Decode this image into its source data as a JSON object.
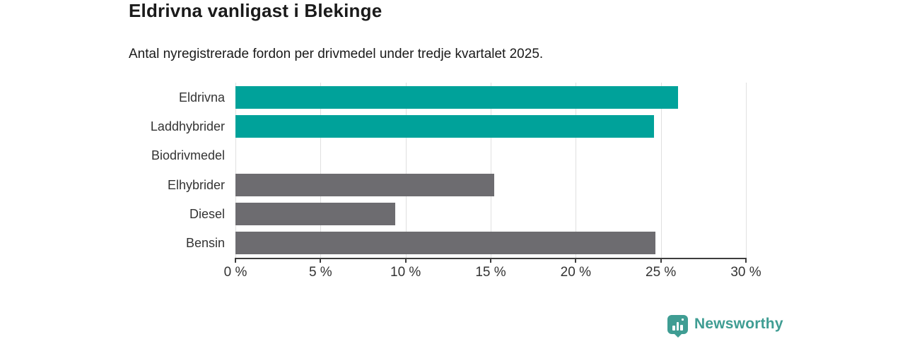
{
  "header": {
    "title": "Eldrivna vanligast i Blekinge",
    "subtitle": "Antal nyregistrerade fordon per drivmedel under tredje kvartalet 2025."
  },
  "chart_data": {
    "type": "bar",
    "orientation": "horizontal",
    "categories": [
      "Eldrivna",
      "Laddhybrider",
      "Biodrivmedel",
      "Elhybrider",
      "Diesel",
      "Bensin"
    ],
    "values": [
      26.0,
      24.6,
      0,
      15.2,
      9.4,
      24.7
    ],
    "highlighted": [
      true,
      true,
      false,
      false,
      false,
      false
    ],
    "colors": {
      "highlight": "#00a29a",
      "default": "#6d6c70"
    },
    "xlabel": "",
    "ylabel": "",
    "xlim": [
      0,
      30
    ],
    "x_ticks": [
      0,
      5,
      10,
      15,
      20,
      25,
      30
    ],
    "x_tick_labels": [
      "0 %",
      "5 %",
      "10 %",
      "15 %",
      "20 %",
      "25 %",
      "30 %"
    ],
    "grid": "vertical",
    "legend": "none",
    "unit": "%"
  },
  "footer": {
    "brand": "Newsworthy",
    "brand_color": "#3f9d93",
    "logo_icon": "bar-chart-speech-bubble-icon"
  }
}
